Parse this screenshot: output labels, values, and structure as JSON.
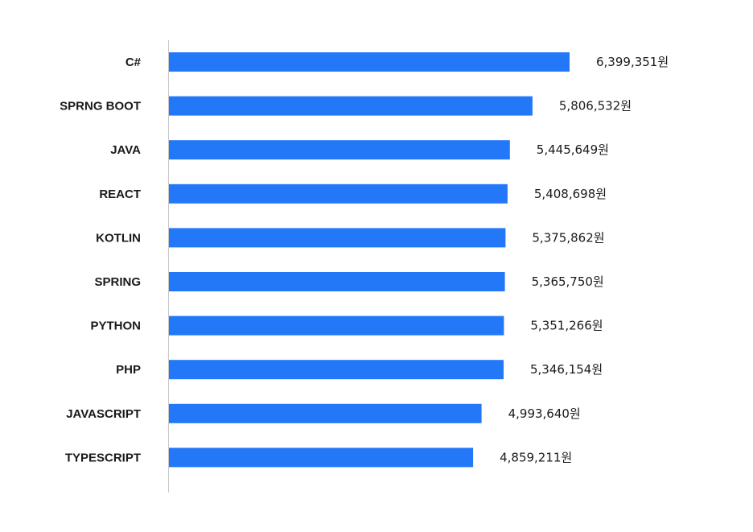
{
  "chart_data": {
    "type": "bar",
    "orientation": "horizontal",
    "categories": [
      "C#",
      "SPRNG BOOT",
      "JAVA",
      "REACT",
      "KOTLIN",
      "SPRING",
      "PYTHON",
      "PHP",
      "JAVASCRIPT",
      "TYPESCRIPT"
    ],
    "values": [
      6399351,
      5806532,
      5445649,
      5408698,
      5375862,
      5365750,
      5351266,
      5346154,
      4993640,
      4859211
    ],
    "value_labels": [
      "6,399,351원",
      "5,806,532원",
      "5,445,649원",
      "5,408,698원",
      "5,375,862원",
      "5,365,750원",
      "5,351,266원",
      "5,346,154원",
      "4,993,640원",
      "4,859,211원"
    ],
    "xlim": [
      0,
      7000000
    ],
    "title": "",
    "xlabel": "",
    "ylabel": "",
    "grid": false,
    "legend": "none",
    "bar_color": "#2378f7"
  }
}
